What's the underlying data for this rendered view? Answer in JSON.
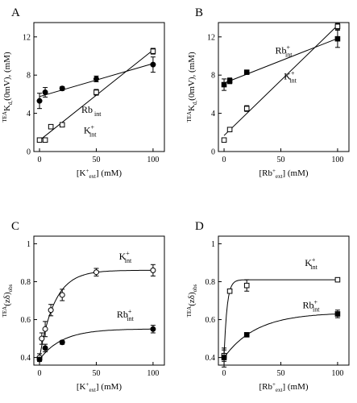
{
  "chart_data": [
    {
      "panel": "A",
      "type": "scatter",
      "xlabel": [
        "[K",
        "+",
        "ext",
        "] (mM)"
      ],
      "ylabel": [
        "TEA",
        "K",
        "d,",
        "(0mV), (mM)"
      ],
      "xticks": [
        0,
        50,
        100
      ],
      "yticks": [
        0,
        4,
        8,
        12
      ],
      "xlim": [
        -5,
        110
      ],
      "ylim": [
        0,
        13.5
      ],
      "series": [
        {
          "name": [
            "Rb",
            "",
            "int"
          ],
          "marker": "filled-circle",
          "x": [
            0,
            5,
            20,
            50,
            100
          ],
          "y": [
            5.3,
            6.2,
            6.6,
            7.6,
            9.1
          ],
          "err": [
            0.8,
            0.5,
            0.2,
            0.3,
            0.8
          ],
          "fit": "linear"
        },
        {
          "name": [
            "K",
            "+",
            "int"
          ],
          "marker": "open-square",
          "x": [
            0,
            5,
            10,
            20,
            50,
            100
          ],
          "y": [
            1.2,
            1.2,
            2.6,
            2.8,
            6.2,
            10.5
          ],
          "err": [
            0.15,
            0.15,
            0.15,
            0.2,
            0.3,
            0.3
          ],
          "fit": "linear"
        }
      ]
    },
    {
      "panel": "B",
      "type": "scatter",
      "xlabel": [
        "[Rb",
        "+",
        "ext",
        "] (mM)"
      ],
      "ylabel": [
        "TEA",
        "K",
        "d,",
        "(0mV), (mM)"
      ],
      "xticks": [
        0,
        50,
        100
      ],
      "yticks": [
        0,
        4,
        8,
        12
      ],
      "xlim": [
        -5,
        110
      ],
      "ylim": [
        0,
        13.5
      ],
      "series": [
        {
          "name": [
            "Rb",
            "+",
            "int"
          ],
          "marker": "filled-square",
          "x": [
            0,
            5,
            20,
            100
          ],
          "y": [
            7.0,
            7.4,
            8.3,
            11.8
          ],
          "err": [
            0.6,
            0.3,
            0.2,
            0.9
          ],
          "fit": "linear"
        },
        {
          "name": [
            "K",
            "+",
            "int"
          ],
          "marker": "open-square",
          "x": [
            0,
            5,
            20,
            100
          ],
          "y": [
            1.2,
            2.3,
            4.5,
            13.1
          ],
          "err": [
            0.15,
            0.15,
            0.3,
            0.3
          ],
          "fit": "linear"
        }
      ]
    },
    {
      "panel": "C",
      "type": "scatter",
      "xlabel": [
        "[K",
        "+",
        "ext",
        "] (mM)"
      ],
      "ylabel": [
        "TEA",
        "(zδ)",
        "obs",
        ""
      ],
      "xticks": [
        0,
        50,
        100
      ],
      "yticks": [
        0.4,
        0.6,
        0.8,
        1.0
      ],
      "xlim": [
        -5,
        110
      ],
      "ylim": [
        0.36,
        1.04
      ],
      "series": [
        {
          "name": [
            "K",
            "+",
            "int"
          ],
          "marker": "open-circle",
          "x": [
            0,
            2,
            5,
            10,
            20,
            50,
            100
          ],
          "y": [
            0.4,
            0.5,
            0.55,
            0.65,
            0.73,
            0.85,
            0.86
          ],
          "err": [
            0.02,
            0.03,
            0.04,
            0.03,
            0.03,
            0.02,
            0.03
          ],
          "fit": "saturating"
        },
        {
          "name": [
            "Rb",
            "+",
            "int"
          ],
          "marker": "filled-circle",
          "x": [
            0,
            5,
            20,
            100
          ],
          "y": [
            0.39,
            0.45,
            0.48,
            0.55
          ],
          "err": [
            0.01,
            0.02,
            0.01,
            0.02
          ],
          "fit": "saturating"
        }
      ]
    },
    {
      "panel": "D",
      "type": "scatter",
      "xlabel": [
        "[Rb",
        "+",
        "ext",
        "] (mM)"
      ],
      "ylabel": [
        "TEA",
        "(zδ)",
        "obs",
        ""
      ],
      "xticks": [
        0,
        50,
        100
      ],
      "yticks": [
        0.4,
        0.6,
        0.8,
        1.0
      ],
      "xlim": [
        -5,
        110
      ],
      "ylim": [
        0.36,
        1.04
      ],
      "series": [
        {
          "name": [
            "K",
            "+",
            "int"
          ],
          "marker": "open-square",
          "x": [
            0,
            5,
            20,
            100
          ],
          "y": [
            0.41,
            0.75,
            0.78,
            0.81
          ],
          "err": [
            0.03,
            0.01,
            0.03,
            0.01
          ],
          "fit": "saturating"
        },
        {
          "name": [
            "Rb",
            "+",
            "int"
          ],
          "marker": "filled-square",
          "x": [
            0,
            20,
            100
          ],
          "y": [
            0.4,
            0.52,
            0.63
          ],
          "err": [
            0.05,
            0.01,
            0.02
          ],
          "fit": "saturating"
        }
      ]
    }
  ]
}
